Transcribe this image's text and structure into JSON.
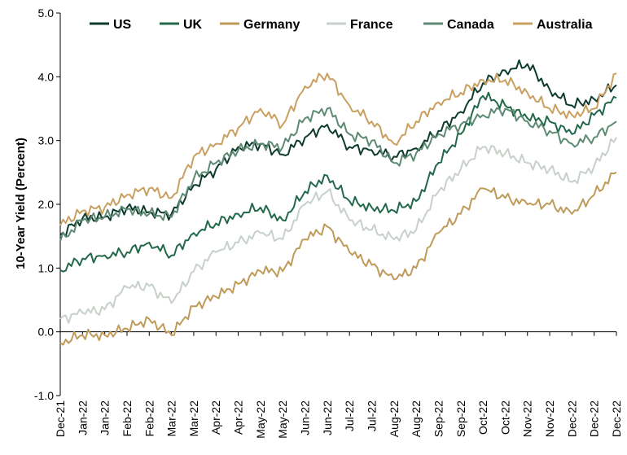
{
  "chart_data": {
    "type": "line",
    "title": "",
    "xlabel": "",
    "ylabel": "10-Year Yield (Percent)",
    "ylim": [
      -1.0,
      5.0
    ],
    "yticks": [
      "-1.0",
      "0.0",
      "1.0",
      "2.0",
      "3.0",
      "4.0",
      "5.0"
    ],
    "grid": false,
    "legend_position": "top",
    "categories": [
      "Dec-21",
      "Jan-22",
      "Jan-22",
      "Feb-22",
      "Feb-22",
      "Mar-22",
      "Mar-22",
      "Apr-22",
      "Apr-22",
      "May-22",
      "May-22",
      "Jun-22",
      "Jun-22",
      "Jul-22",
      "Jul-22",
      "Aug-22",
      "Aug-22",
      "Sep-22",
      "Sep-22",
      "Oct-22",
      "Oct-22",
      "Nov-22",
      "Nov-22",
      "Dec-22",
      "Dec-22",
      "Dec-22"
    ],
    "series": [
      {
        "name": "US",
        "color": "#0d3b2e",
        "values": [
          1.52,
          1.78,
          1.8,
          1.95,
          1.88,
          1.85,
          2.3,
          2.55,
          2.9,
          2.95,
          2.78,
          3.05,
          3.25,
          2.9,
          2.85,
          2.75,
          2.88,
          3.15,
          3.45,
          3.9,
          4.1,
          4.2,
          3.8,
          3.55,
          3.65,
          3.87
        ]
      },
      {
        "name": "UK",
        "color": "#22684a",
        "values": [
          0.97,
          1.15,
          1.2,
          1.25,
          1.4,
          1.2,
          1.55,
          1.7,
          1.85,
          1.95,
          1.75,
          2.2,
          2.45,
          2.05,
          1.95,
          1.9,
          2.05,
          2.65,
          3.1,
          3.7,
          3.55,
          3.35,
          3.3,
          3.1,
          3.4,
          3.67
        ]
      },
      {
        "name": "Germany",
        "color": "#bf9b59",
        "values": [
          -0.17,
          -0.05,
          -0.05,
          0.05,
          0.2,
          -0.05,
          0.4,
          0.55,
          0.75,
          0.95,
          0.95,
          1.45,
          1.65,
          1.25,
          1.05,
          0.82,
          1.0,
          1.55,
          1.85,
          2.25,
          2.1,
          2.0,
          2.0,
          1.85,
          2.15,
          2.5
        ]
      },
      {
        "name": "France",
        "color": "#c7d1c9",
        "values": [
          0.2,
          0.3,
          0.35,
          0.7,
          0.72,
          0.45,
          0.95,
          1.25,
          1.4,
          1.55,
          1.45,
          2.0,
          2.2,
          1.75,
          1.6,
          1.45,
          1.6,
          2.2,
          2.55,
          2.9,
          2.8,
          2.65,
          2.55,
          2.35,
          2.6,
          3.05
        ]
      },
      {
        "name": "Canada",
        "color": "#5e8a74",
        "values": [
          1.42,
          1.75,
          1.8,
          1.92,
          1.85,
          1.8,
          2.4,
          2.65,
          2.85,
          2.95,
          2.9,
          3.35,
          3.5,
          3.1,
          3.0,
          2.65,
          2.8,
          3.1,
          3.25,
          3.4,
          3.5,
          3.3,
          3.15,
          2.95,
          3.05,
          3.3
        ]
      },
      {
        "name": "Australia",
        "color": "#c9a060",
        "values": [
          1.67,
          1.9,
          1.95,
          2.15,
          2.25,
          2.1,
          2.75,
          2.95,
          3.2,
          3.5,
          3.25,
          3.85,
          4.05,
          3.55,
          3.3,
          2.95,
          3.3,
          3.6,
          3.75,
          3.95,
          3.95,
          3.75,
          3.5,
          3.4,
          3.5,
          4.05
        ]
      }
    ]
  }
}
